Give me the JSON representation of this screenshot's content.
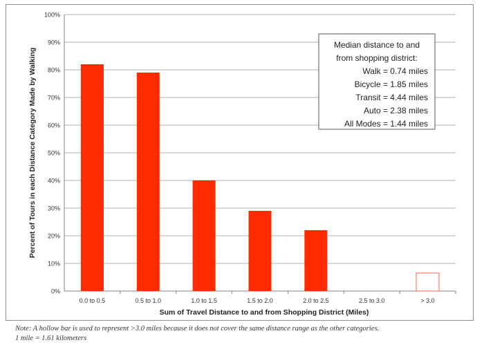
{
  "chart_data": {
    "type": "bar",
    "title": "",
    "xlabel": "Sum of Travel Distance to and from Shopping District (Miles)",
    "ylabel": "Percent of Tours in each Distance Category Made by Walking",
    "categories": [
      "0.0 to 0.5",
      "0.5 to 1.0",
      "1.0 to 1.5",
      "1.5 to 2.0",
      "2.0 to 2.5",
      "2.5 to 3.0",
      "> 3.0"
    ],
    "values": [
      82,
      79,
      40,
      29,
      22,
      0,
      6.5
    ],
    "hollow": [
      false,
      false,
      false,
      false,
      false,
      false,
      true
    ],
    "ylim": [
      0,
      100
    ],
    "ytick_step": 10,
    "yticks": [
      "0%",
      "10%",
      "20%",
      "30%",
      "40%",
      "50%",
      "60%",
      "70%",
      "80%",
      "90%",
      "100%"
    ],
    "grid": true,
    "bar_color": "#ff2a00",
    "hollow_color": "#ff7a66",
    "annotation": {
      "lines": [
        "Median distance to and",
        "from shopping district:",
        "Walk = 0.74 miles",
        "Bicycle = 1.85 miles",
        "Transit = 4.44 miles",
        "Auto = 2.38 miles",
        "All Modes = 1.44 miles"
      ]
    }
  },
  "note": {
    "line1": "Note: A hollow bar is used to represent >3.0 miles because it does not cover the same distance range as the other categories.",
    "line2": "1 mile = 1.61 kilometers"
  }
}
